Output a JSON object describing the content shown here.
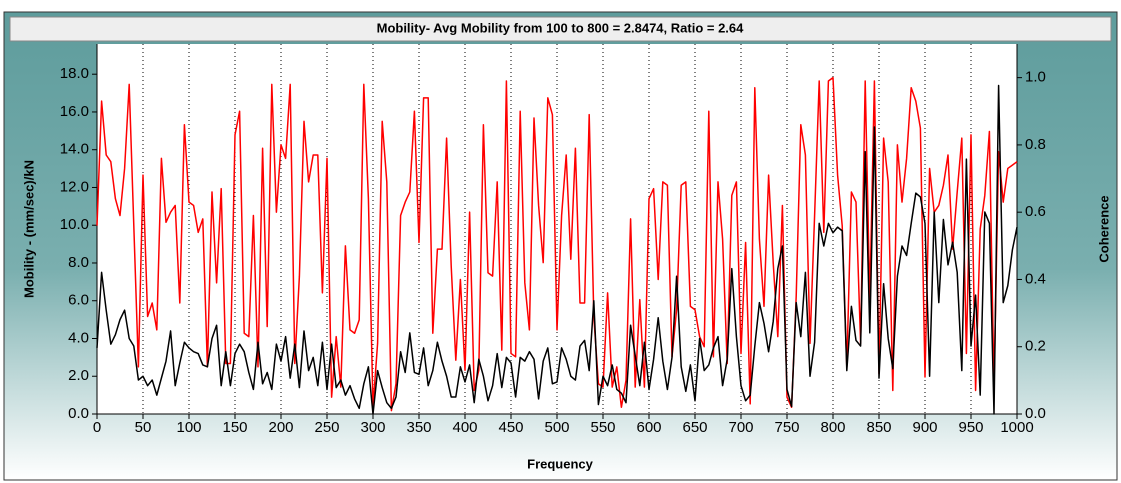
{
  "chart_data": {
    "type": "line",
    "title": "Mobility- Avg Mobility from 100 to 800 = 2.8474, Ratio = 2.64",
    "x_label": "Frequency",
    "y_label": "Mobility - (mm/sec)/kN",
    "y2_label": "Coherence",
    "grid": "x",
    "xlim": [
      0,
      1000
    ],
    "ylim": [
      0,
      19.6
    ],
    "y2lim": [
      0,
      1.1
    ],
    "xticks": [
      0,
      50,
      100,
      150,
      200,
      250,
      300,
      350,
      400,
      450,
      500,
      550,
      600,
      650,
      700,
      750,
      800,
      850,
      900,
      950,
      1000
    ],
    "yticks": [
      {
        "value": 0,
        "label": "0.0"
      },
      {
        "value": 2,
        "label": "2.0"
      },
      {
        "value": 4,
        "label": "4.0"
      },
      {
        "value": 6,
        "label": "6.0"
      },
      {
        "value": 8,
        "label": "8.0"
      },
      {
        "value": 10,
        "label": "10.0"
      },
      {
        "value": 12,
        "label": "12.0"
      },
      {
        "value": 14,
        "label": "14.0"
      },
      {
        "value": 16,
        "label": "16.0"
      },
      {
        "value": 18,
        "label": "18.0"
      }
    ],
    "y2ticks": [
      {
        "value": 0,
        "label": "0.0"
      },
      {
        "value": 0.2,
        "label": "0.2"
      },
      {
        "value": 0.4,
        "label": "0.4"
      },
      {
        "value": 0.6,
        "label": "0.6"
      },
      {
        "value": 0.8,
        "label": "0.8"
      },
      {
        "value": 1,
        "label": "1.0"
      }
    ],
    "x": [
      0,
      5,
      10,
      15,
      20,
      25,
      30,
      35,
      40,
      45,
      50,
      55,
      60,
      65,
      70,
      75,
      80,
      85,
      90,
      95,
      100,
      105,
      110,
      115,
      120,
      125,
      130,
      135,
      140,
      145,
      150,
      155,
      160,
      165,
      170,
      175,
      180,
      185,
      190,
      195,
      200,
      205,
      210,
      215,
      220,
      225,
      230,
      235,
      240,
      245,
      250,
      255,
      260,
      265,
      270,
      275,
      280,
      285,
      290,
      295,
      300,
      305,
      310,
      315,
      320,
      325,
      330,
      335,
      340,
      345,
      350,
      355,
      360,
      365,
      370,
      375,
      380,
      385,
      390,
      395,
      400,
      405,
      410,
      415,
      420,
      425,
      430,
      435,
      440,
      445,
      450,
      455,
      460,
      465,
      470,
      475,
      480,
      485,
      490,
      495,
      500,
      505,
      510,
      515,
      520,
      525,
      530,
      535,
      540,
      545,
      550,
      555,
      560,
      565,
      570,
      575,
      580,
      585,
      590,
      595,
      600,
      605,
      610,
      615,
      620,
      625,
      630,
      635,
      640,
      645,
      650,
      655,
      660,
      665,
      670,
      675,
      680,
      685,
      690,
      695,
      700,
      705,
      710,
      715,
      720,
      725,
      730,
      735,
      740,
      745,
      750,
      755,
      760,
      765,
      770,
      775,
      780,
      785,
      790,
      795,
      800,
      805,
      810,
      815,
      820,
      825,
      830,
      835,
      840,
      845,
      850,
      855,
      860,
      865,
      870,
      875,
      880,
      885,
      890,
      895,
      900,
      905,
      910,
      915,
      920,
      925,
      930,
      935,
      940,
      945,
      950,
      955,
      960,
      965,
      970,
      975,
      980,
      985,
      990,
      995,
      1000
    ],
    "series": [
      {
        "color": "#000000",
        "values": [
          3.5,
          7.5,
          5.5,
          3.7,
          4.2,
          5.0,
          5.5,
          4.0,
          3.6,
          1.8,
          2.0,
          1.5,
          1.8,
          1.0,
          1.9,
          2.8,
          4.4,
          1.5,
          2.7,
          3.8,
          3.5,
          3.3,
          3.2,
          2.6,
          2.5,
          4.0,
          4.7,
          1.5,
          3.3,
          1.5,
          3.2,
          3.7,
          3.3,
          2.2,
          1.3,
          3.8,
          1.6,
          2.2,
          1.3,
          3.7,
          2.8,
          4.1,
          1.9,
          3.7,
          1.4,
          4.4,
          2.3,
          3.0,
          1.5,
          3.8,
          1.3,
          3.7,
          1.4,
          1.8,
          1.0,
          1.5,
          0.8,
          0.3,
          1.6,
          2.5,
          0.0,
          2.3,
          1.4,
          0.6,
          0.3,
          0.9,
          3.3,
          2.2,
          4.3,
          2.2,
          2.1,
          3.5,
          1.5,
          2.3,
          3.8,
          2.8,
          2.0,
          0.9,
          0.9,
          2.5,
          1.7,
          2.6,
          0.6,
          2.9,
          2.0,
          0.7,
          1.5,
          3.2,
          1.4,
          3.0,
          2.7,
          0.9,
          3.0,
          2.8,
          3.3,
          2.9,
          0.8,
          2.8,
          3.5,
          1.6,
          1.7,
          3.5,
          2.9,
          2.0,
          1.8,
          3.6,
          3.9,
          2.3,
          6.0,
          0.5,
          2.0,
          1.5,
          2.6,
          1.3,
          1.1,
          0.6,
          4.7,
          3.1,
          1.5,
          3.8,
          1.3,
          2.9,
          5.1,
          2.8,
          1.3,
          3.0,
          7.3,
          2.5,
          1.2,
          2.6,
          0.7,
          4.0,
          2.3,
          2.6,
          3.5,
          4.1,
          1.5,
          2.9,
          7.7,
          4.1,
          1.5,
          0.7,
          1.0,
          3.6,
          5.9,
          4.8,
          3.3,
          4.9,
          7.7,
          8.9,
          1.3,
          0.4,
          5.9,
          4.1,
          7.5,
          2.0,
          3.8,
          10.1,
          8.9,
          10.1,
          9.6,
          9.9,
          9.7,
          2.3,
          5.7,
          3.9,
          3.6,
          13.9,
          4.3,
          15.2,
          1.9,
          6.9,
          4.0,
          2.4,
          7.3,
          8.9,
          8.4,
          10.1,
          11.7,
          11.5,
          10.1,
          2.0,
          10.7,
          5.9,
          10.3,
          7.9,
          9.1,
          7.5,
          2.3,
          13.5,
          3.6,
          6.3,
          1.0,
          10.7,
          10.1,
          0.0,
          17.4,
          5.9,
          6.8,
          8.7,
          9.9
        ]
      },
      {
        "color": "#ff0000",
        "axis": "y2",
        "values": [
          0.56,
          0.93,
          0.77,
          0.75,
          0.64,
          0.59,
          0.73,
          0.98,
          0.56,
          0.14,
          0.71,
          0.29,
          0.33,
          0.25,
          0.76,
          0.57,
          0.6,
          0.62,
          0.33,
          0.86,
          0.63,
          0.62,
          0.54,
          0.58,
          0.14,
          0.66,
          0.39,
          0.67,
          0.15,
          0.15,
          0.83,
          0.9,
          0.24,
          0.23,
          0.59,
          0.14,
          0.79,
          0.26,
          0.98,
          0.6,
          0.8,
          0.76,
          0.98,
          0.15,
          0.41,
          0.87,
          0.69,
          0.77,
          0.77,
          0.36,
          0.76,
          0.05,
          0.23,
          0.08,
          0.5,
          0.25,
          0.24,
          0.28,
          0.98,
          0.64,
          0.02,
          0.21,
          0.87,
          0.69,
          0.01,
          0.09,
          0.59,
          0.63,
          0.66,
          0.9,
          0.51,
          0.94,
          0.94,
          0.24,
          0.49,
          0.49,
          0.82,
          0.44,
          0.16,
          0.4,
          0.13,
          0.6,
          0.07,
          0.13,
          0.86,
          0.42,
          0.41,
          0.69,
          0.19,
          0.99,
          0.18,
          0.17,
          0.9,
          0.39,
          0.25,
          0.88,
          0.62,
          0.45,
          0.94,
          0.89,
          0.25,
          0.59,
          0.77,
          0.46,
          0.79,
          0.33,
          0.33,
          0.89,
          0.29,
          0.09,
          0.08,
          0.36,
          0.08,
          0.14,
          0.02,
          0.1,
          0.58,
          0.08,
          0.34,
          0.08,
          0.64,
          0.67,
          0.4,
          0.69,
          0.68,
          0.17,
          0.31,
          0.68,
          0.69,
          0.32,
          0.31,
          0.23,
          0.2,
          0.9,
          0.17,
          0.69,
          0.52,
          0.15,
          0.65,
          0.69,
          0.18,
          0.51,
          0.03,
          0.97,
          0.52,
          0.32,
          0.71,
          0.45,
          0.23,
          0.62,
          0.05,
          0.02,
          0.35,
          0.86,
          0.77,
          0.21,
          0.59,
          0.99,
          0.54,
          0.99,
          1.0,
          0.71,
          0.56,
          0.14,
          0.66,
          0.63,
          0.21,
          0.99,
          0.34,
          0.99,
          0.12,
          0.82,
          0.69,
          0.07,
          0.8,
          0.63,
          0.76,
          0.97,
          0.93,
          0.85,
          0.11,
          0.73,
          0.6,
          0.62,
          0.68,
          0.77,
          0.49,
          0.66,
          0.82,
          0.18,
          0.83,
          0.07,
          0.55,
          0.65,
          0.84,
          0.08,
          0.78,
          0.63,
          0.73,
          0.74,
          0.75
        ]
      }
    ]
  }
}
